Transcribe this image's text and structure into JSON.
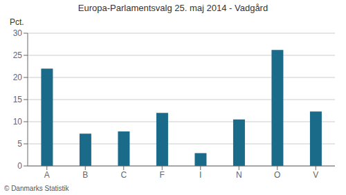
{
  "chart_data": {
    "type": "bar",
    "title": "Europa-Parlamentsvalg 25. maj 2014 - Vadgård",
    "categories": [
      "A",
      "B",
      "C",
      "F",
      "I",
      "N",
      "O",
      "V"
    ],
    "values": [
      22.0,
      7.3,
      7.8,
      12.0,
      2.9,
      10.5,
      26.2,
      12.3
    ],
    "color": "#1a6b8a",
    "ylabel": "Pct.",
    "ylim": [
      0,
      30
    ],
    "yticks": [
      0,
      5,
      10,
      15,
      20,
      25,
      30
    ],
    "grid": true,
    "annotations": [
      "© Danmarks Statistik"
    ]
  }
}
